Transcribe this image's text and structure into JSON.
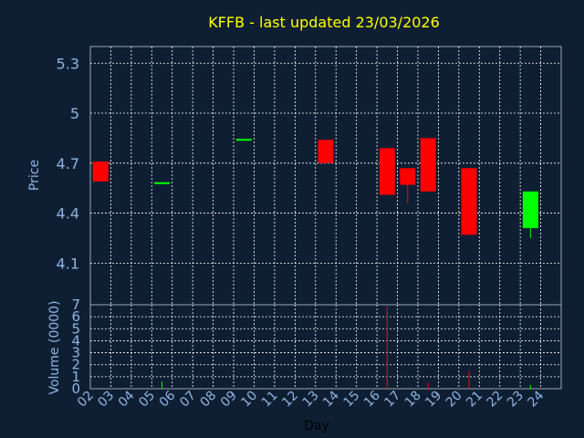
{
  "chart_data": [
    {
      "type": "candlestick",
      "title": "KFFB - last updated 23/03/2026",
      "ylabel": "Price",
      "ylim": [
        3.85,
        5.4
      ],
      "yticks": [
        "4.1",
        "4.4",
        "4.7",
        "5",
        "5.3"
      ],
      "ytick_values": [
        4.1,
        4.4,
        4.7,
        5.0,
        5.3
      ],
      "grid": true,
      "colors": {
        "up": "#00ff00",
        "down": "#ff0000",
        "grid": "#ffffff",
        "background": "#0f1f33",
        "text": "#8fb3e0",
        "title": "#ffff00"
      },
      "candles": [
        {
          "day": 2,
          "open": 4.71,
          "high": 4.71,
          "low": 4.59,
          "close": 4.59
        },
        {
          "day": 5,
          "open": 4.58,
          "high": 4.58,
          "low": 4.58,
          "close": 4.58
        },
        {
          "day": 9,
          "open": 4.84,
          "high": 4.84,
          "low": 4.84,
          "close": 4.84
        },
        {
          "day": 13,
          "open": 4.84,
          "high": 4.84,
          "low": 4.7,
          "close": 4.7
        },
        {
          "day": 16,
          "open": 4.79,
          "high": 4.79,
          "low": 4.51,
          "close": 4.51
        },
        {
          "day": 17,
          "open": 4.67,
          "high": 4.67,
          "low": 4.46,
          "close": 4.57
        },
        {
          "day": 18,
          "open": 4.85,
          "high": 4.85,
          "low": 4.53,
          "close": 4.53
        },
        {
          "day": 20,
          "open": 4.67,
          "high": 4.67,
          "low": 4.27,
          "close": 4.27
        },
        {
          "day": 23,
          "open": 4.31,
          "high": 4.53,
          "low": 4.25,
          "close": 4.53
        }
      ]
    },
    {
      "type": "bar",
      "ylabel": "Volume (0000)",
      "xlabel": "Day",
      "ylim": [
        0,
        7
      ],
      "yticks": [
        "0",
        "1",
        "2",
        "3",
        "4",
        "5",
        "6",
        "7"
      ],
      "categories": [
        "02",
        "03",
        "04",
        "05",
        "06",
        "07",
        "08",
        "09",
        "10",
        "11",
        "12",
        "13",
        "14",
        "15",
        "16",
        "17",
        "18",
        "19",
        "20",
        "21",
        "22",
        "23",
        "24"
      ],
      "grid": true,
      "volumes": [
        {
          "day": 2,
          "value": 0.0,
          "direction": "down"
        },
        {
          "day": 5,
          "value": 0.6,
          "direction": "up"
        },
        {
          "day": 9,
          "value": 0.0,
          "direction": "up"
        },
        {
          "day": 13,
          "value": 0.0,
          "direction": "down"
        },
        {
          "day": 16,
          "value": 6.9,
          "direction": "down"
        },
        {
          "day": 17,
          "value": 0.0,
          "direction": "down"
        },
        {
          "day": 18,
          "value": 0.5,
          "direction": "down"
        },
        {
          "day": 20,
          "value": 1.5,
          "direction": "down"
        },
        {
          "day": 23,
          "value": 0.3,
          "direction": "up"
        }
      ]
    }
  ]
}
